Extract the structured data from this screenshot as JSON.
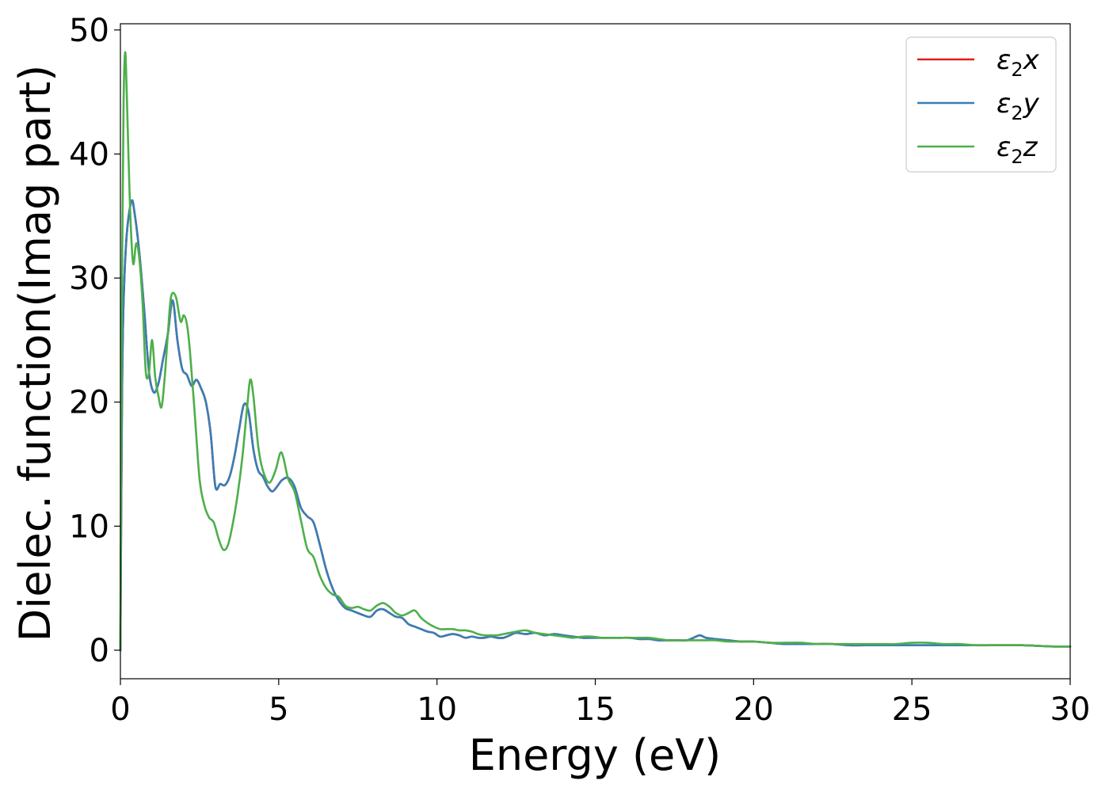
{
  "chart_data": {
    "type": "line",
    "title": "",
    "xlabel": "Energy (eV)",
    "ylabel": "Dielec. function(Imag part)",
    "xlim": [
      0,
      30
    ],
    "ylim": [
      -2.3,
      50.5
    ],
    "xticks": [
      0,
      5,
      10,
      15,
      20,
      25,
      30
    ],
    "yticks": [
      0,
      10,
      20,
      30,
      40,
      50
    ],
    "grid": false,
    "legend_position": "top-right",
    "series": [
      {
        "name": "ε2x",
        "legend": {
          "base": "ε",
          "sub": "2",
          "suffix": "x"
        },
        "color": "#e41a1c",
        "x": [
          0,
          0.05,
          0.1,
          0.2,
          0.35,
          0.45,
          0.6,
          0.75,
          0.9,
          1.05,
          1.2,
          1.35,
          1.5,
          1.65,
          1.8,
          1.95,
          2.1,
          2.25,
          2.4,
          2.55,
          2.7,
          2.85,
          3.0,
          3.15,
          3.3,
          3.45,
          3.6,
          3.75,
          3.9,
          4.05,
          4.2,
          4.35,
          4.5,
          4.65,
          4.8,
          4.95,
          5.1,
          5.3,
          5.5,
          5.7,
          5.9,
          6.1,
          6.3,
          6.5,
          6.7,
          6.9,
          7.1,
          7.3,
          7.5,
          7.7,
          7.9,
          8.1,
          8.3,
          8.5,
          8.7,
          8.9,
          9.1,
          9.3,
          9.5,
          9.7,
          9.9,
          10.1,
          10.3,
          10.5,
          10.7,
          10.9,
          11.1,
          11.3,
          11.5,
          11.7,
          11.9,
          12.1,
          12.3,
          12.5,
          12.8,
          13.1,
          13.4,
          13.7,
          14.0,
          14.3,
          14.6,
          14.9,
          15.2,
          15.5,
          15.8,
          16.1,
          16.4,
          16.7,
          17.0,
          17.3,
          17.6,
          17.9,
          18.1,
          18.3,
          18.5,
          18.8,
          19.2,
          19.6,
          20.0,
          20.5,
          21.0,
          21.5,
          22.0,
          22.5,
          23.0,
          23.5,
          24.0,
          24.5,
          25.0,
          25.5,
          26.0,
          26.5,
          27.0,
          27.5,
          28.0,
          28.5,
          29.0,
          29.5,
          30.0
        ],
        "y": [
          0,
          20,
          28,
          33.5,
          36.2,
          35.2,
          32,
          27.5,
          22.5,
          20.8,
          21.5,
          23.5,
          25.5,
          28.2,
          25,
          22.7,
          22.2,
          21.3,
          21.8,
          21.1,
          20,
          17.5,
          13.2,
          13.4,
          13.3,
          14,
          15.6,
          17.8,
          19.8,
          19.2,
          16.2,
          14.5,
          14.0,
          13.2,
          12.8,
          13.2,
          13.7,
          13.9,
          13.2,
          11.5,
          10.8,
          10.3,
          8.5,
          6.5,
          5.0,
          4.0,
          3.4,
          3.2,
          3.0,
          2.8,
          2.7,
          3.2,
          3.3,
          3.0,
          2.7,
          2.6,
          2.1,
          1.9,
          1.7,
          1.5,
          1.4,
          1.1,
          1.2,
          1.3,
          1.2,
          1.0,
          1.1,
          1.0,
          1.0,
          1.1,
          1.0,
          1.0,
          1.2,
          1.4,
          1.3,
          1.4,
          1.2,
          1.3,
          1.2,
          1.1,
          1.0,
          1.0,
          1.0,
          1.0,
          1.0,
          1.0,
          0.9,
          0.9,
          0.8,
          0.8,
          0.8,
          0.8,
          1.0,
          1.2,
          1.0,
          0.9,
          0.8,
          0.7,
          0.7,
          0.6,
          0.5,
          0.5,
          0.5,
          0.5,
          0.4,
          0.4,
          0.4,
          0.4,
          0.4,
          0.4,
          0.4,
          0.4,
          0.4,
          0.4,
          0.4,
          0.4,
          0.35,
          0.3,
          0.3
        ]
      },
      {
        "name": "ε2y",
        "legend": {
          "base": "ε",
          "sub": "2",
          "suffix": "y"
        },
        "color": "#377eb8",
        "x": [
          0,
          0.05,
          0.1,
          0.2,
          0.35,
          0.45,
          0.6,
          0.75,
          0.9,
          1.05,
          1.2,
          1.35,
          1.5,
          1.65,
          1.8,
          1.95,
          2.1,
          2.25,
          2.4,
          2.55,
          2.7,
          2.85,
          3.0,
          3.15,
          3.3,
          3.45,
          3.6,
          3.75,
          3.9,
          4.05,
          4.2,
          4.35,
          4.5,
          4.65,
          4.8,
          4.95,
          5.1,
          5.3,
          5.5,
          5.7,
          5.9,
          6.1,
          6.3,
          6.5,
          6.7,
          6.9,
          7.1,
          7.3,
          7.5,
          7.7,
          7.9,
          8.1,
          8.3,
          8.5,
          8.7,
          8.9,
          9.1,
          9.3,
          9.5,
          9.7,
          9.9,
          10.1,
          10.3,
          10.5,
          10.7,
          10.9,
          11.1,
          11.3,
          11.5,
          11.7,
          11.9,
          12.1,
          12.3,
          12.5,
          12.8,
          13.1,
          13.4,
          13.7,
          14.0,
          14.3,
          14.6,
          14.9,
          15.2,
          15.5,
          15.8,
          16.1,
          16.4,
          16.7,
          17.0,
          17.3,
          17.6,
          17.9,
          18.1,
          18.3,
          18.5,
          18.8,
          19.2,
          19.6,
          20.0,
          20.5,
          21.0,
          21.5,
          22.0,
          22.5,
          23.0,
          23.5,
          24.0,
          24.5,
          25.0,
          25.5,
          26.0,
          26.5,
          27.0,
          27.5,
          28.0,
          28.5,
          29.0,
          29.5,
          30.0
        ],
        "y": [
          0,
          20,
          28,
          33.5,
          36.2,
          35.2,
          32,
          27.5,
          22.5,
          20.8,
          21.5,
          23.5,
          25.5,
          28.2,
          25,
          22.7,
          22.2,
          21.3,
          21.8,
          21.1,
          20,
          17.5,
          13.2,
          13.4,
          13.3,
          14,
          15.6,
          17.8,
          19.8,
          19.2,
          16.2,
          14.5,
          14.0,
          13.2,
          12.8,
          13.2,
          13.7,
          13.9,
          13.2,
          11.5,
          10.8,
          10.3,
          8.5,
          6.5,
          5.0,
          4.0,
          3.4,
          3.2,
          3.0,
          2.8,
          2.7,
          3.2,
          3.3,
          3.0,
          2.7,
          2.6,
          2.1,
          1.9,
          1.7,
          1.5,
          1.4,
          1.1,
          1.2,
          1.3,
          1.2,
          1.0,
          1.1,
          1.0,
          1.0,
          1.1,
          1.0,
          1.0,
          1.2,
          1.4,
          1.3,
          1.4,
          1.2,
          1.3,
          1.2,
          1.1,
          1.0,
          1.0,
          1.0,
          1.0,
          1.0,
          1.0,
          0.9,
          0.9,
          0.8,
          0.8,
          0.8,
          0.8,
          1.0,
          1.2,
          1.0,
          0.9,
          0.8,
          0.7,
          0.7,
          0.6,
          0.5,
          0.5,
          0.5,
          0.5,
          0.4,
          0.4,
          0.4,
          0.4,
          0.4,
          0.4,
          0.4,
          0.4,
          0.4,
          0.4,
          0.4,
          0.4,
          0.35,
          0.3,
          0.3
        ]
      },
      {
        "name": "ε2z",
        "legend": {
          "base": "ε",
          "sub": "2",
          "suffix": "z"
        },
        "color": "#4daf4a",
        "x": [
          0,
          0.05,
          0.1,
          0.15,
          0.2,
          0.3,
          0.4,
          0.5,
          0.6,
          0.7,
          0.8,
          0.9,
          1.0,
          1.1,
          1.2,
          1.3,
          1.4,
          1.5,
          1.6,
          1.75,
          1.9,
          2.0,
          2.1,
          2.2,
          2.35,
          2.5,
          2.65,
          2.8,
          2.95,
          3.1,
          3.25,
          3.4,
          3.55,
          3.7,
          3.85,
          4.0,
          4.1,
          4.2,
          4.35,
          4.5,
          4.7,
          4.9,
          5.05,
          5.15,
          5.3,
          5.5,
          5.7,
          5.9,
          6.1,
          6.3,
          6.5,
          6.7,
          6.9,
          7.1,
          7.3,
          7.5,
          7.7,
          7.9,
          8.1,
          8.3,
          8.5,
          8.7,
          8.9,
          9.1,
          9.3,
          9.5,
          9.7,
          9.9,
          10.1,
          10.3,
          10.5,
          10.7,
          10.9,
          11.1,
          11.3,
          11.5,
          11.7,
          11.9,
          12.1,
          12.3,
          12.5,
          12.8,
          13.1,
          13.4,
          13.7,
          14.0,
          14.3,
          14.6,
          14.9,
          15.2,
          15.5,
          15.8,
          16.1,
          16.4,
          16.7,
          17.0,
          17.3,
          17.6,
          17.9,
          18.2,
          18.5,
          18.8,
          19.2,
          19.6,
          20.0,
          20.5,
          21.0,
          21.5,
          22.0,
          22.5,
          23.0,
          23.5,
          24.0,
          24.5,
          25.0,
          25.5,
          26.0,
          26.5,
          27.0,
          27.5,
          28.0,
          28.5,
          29.0,
          29.5,
          30.0
        ],
        "y": [
          0,
          30,
          44,
          48.2,
          45,
          36,
          31.2,
          32.8,
          31.5,
          28,
          22.5,
          22.3,
          25,
          22,
          20.5,
          19.6,
          22,
          25.5,
          28.5,
          28.5,
          26.5,
          27,
          26.3,
          24,
          19,
          13.8,
          11.7,
          10.7,
          10.3,
          9,
          8.1,
          8.5,
          10.2,
          12.5,
          15.5,
          19.5,
          21.8,
          20.5,
          16.5,
          14.5,
          13.5,
          14.5,
          15.9,
          15.5,
          13.8,
          12.8,
          10.5,
          8.2,
          7.5,
          6,
          5,
          4.5,
          4.3,
          3.6,
          3.4,
          3.5,
          3.3,
          3.2,
          3.6,
          3.8,
          3.5,
          3.0,
          2.8,
          3.0,
          3.2,
          2.6,
          2.2,
          1.9,
          1.7,
          1.7,
          1.7,
          1.6,
          1.6,
          1.5,
          1.3,
          1.2,
          1.2,
          1.2,
          1.3,
          1.4,
          1.5,
          1.6,
          1.4,
          1.3,
          1.2,
          1.1,
          1.0,
          1.1,
          1.1,
          1.0,
          1.0,
          1.0,
          1.0,
          1.0,
          1.0,
          0.9,
          0.8,
          0.8,
          0.8,
          0.8,
          0.8,
          0.8,
          0.7,
          0.7,
          0.7,
          0.6,
          0.6,
          0.6,
          0.5,
          0.5,
          0.5,
          0.5,
          0.5,
          0.5,
          0.6,
          0.6,
          0.5,
          0.5,
          0.4,
          0.4,
          0.4,
          0.4,
          0.35,
          0.3,
          0.3
        ]
      }
    ]
  }
}
